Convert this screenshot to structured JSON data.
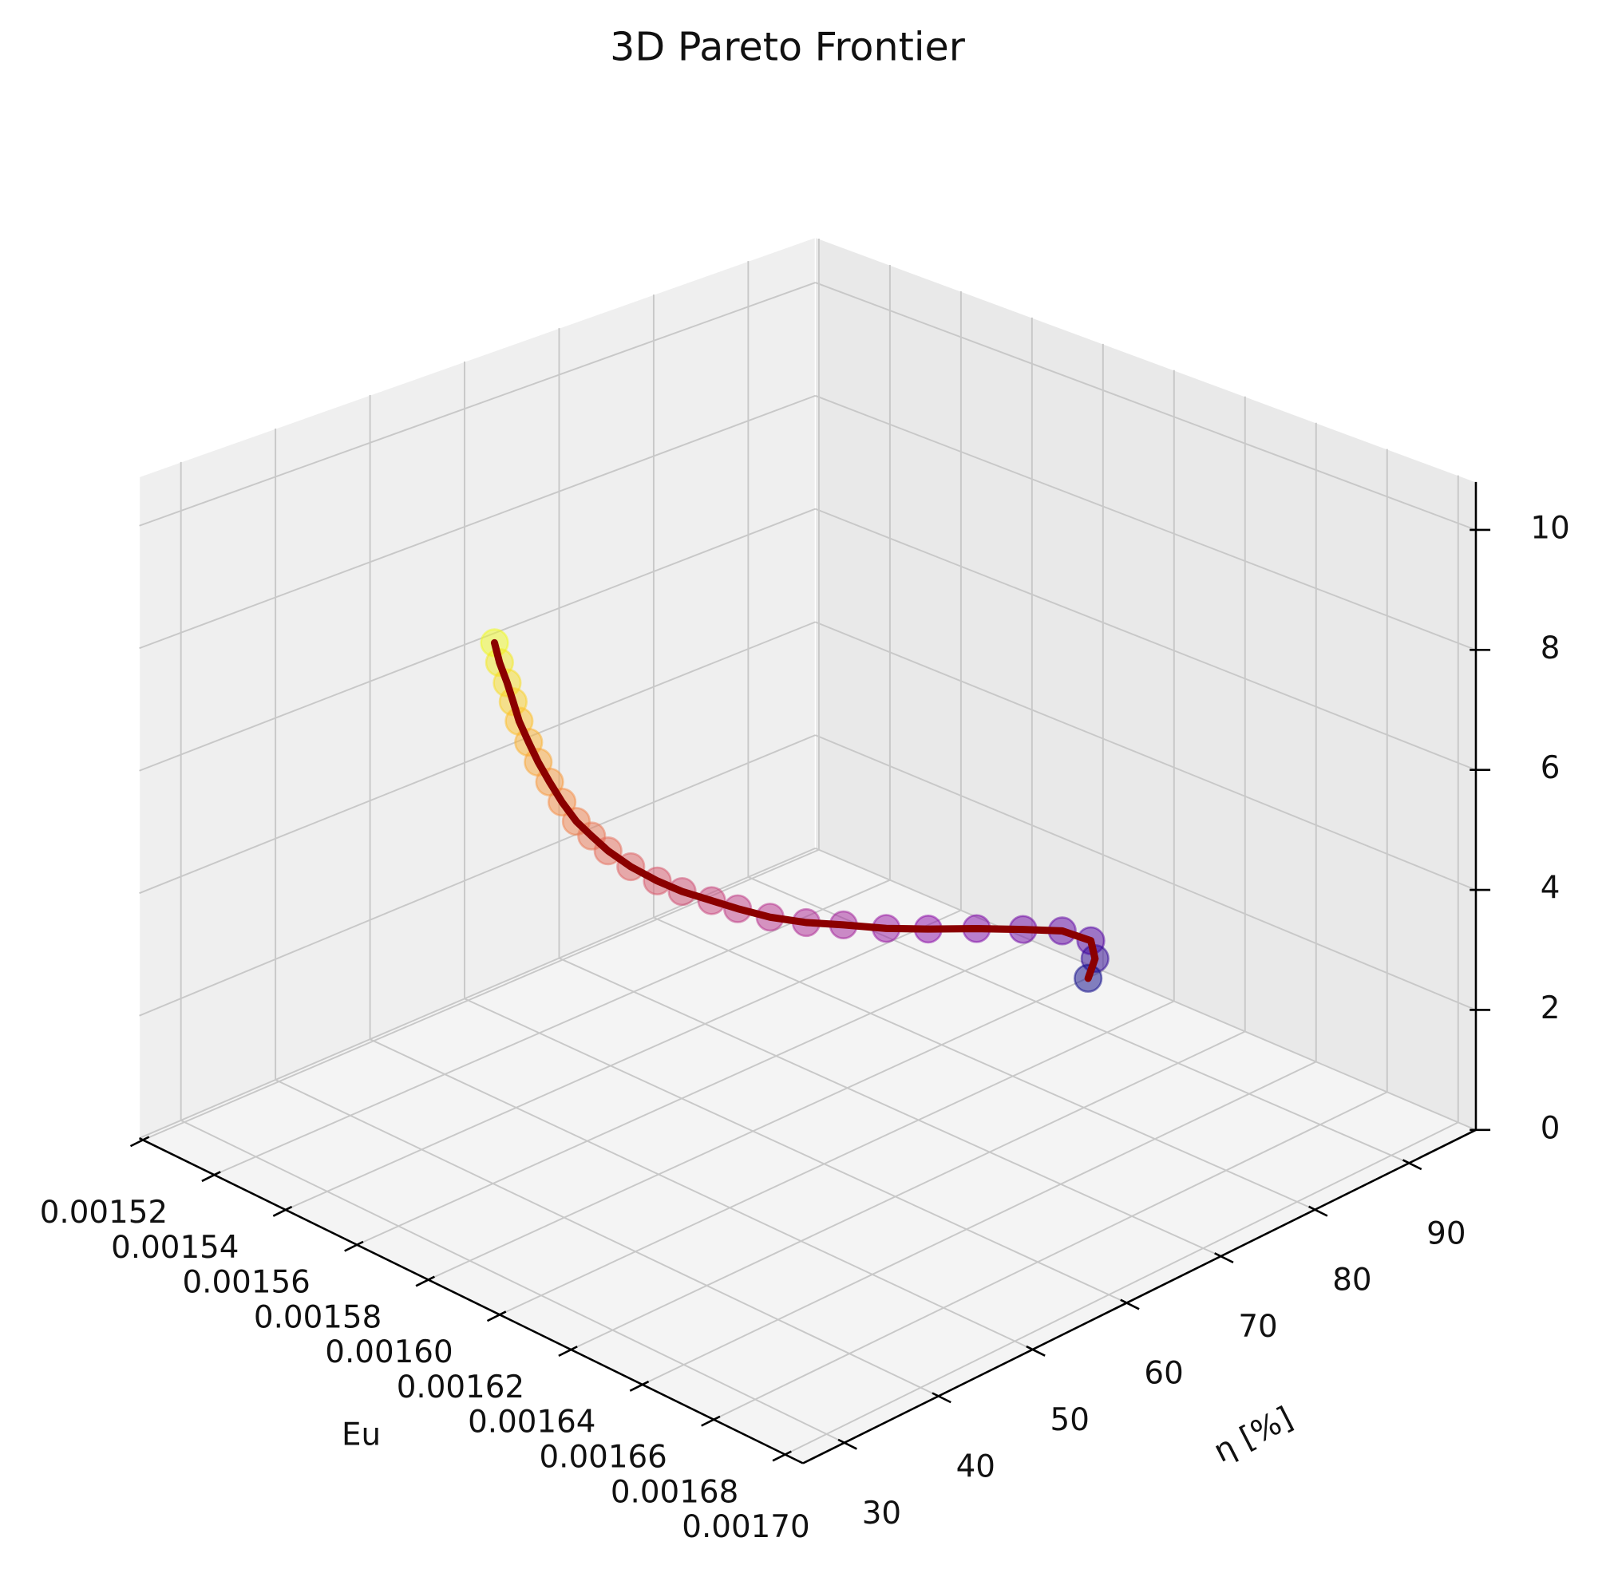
{
  "chart_data": {
    "type": "scatter3d",
    "title": "3D Pareto Frontier",
    "xlabel": "Eu",
    "ylabel": "η [%]",
    "x": [
      0.001577,
      0.00158,
      0.001584,
      0.001587,
      0.00159,
      0.001594,
      0.001598,
      0.001602,
      0.001606,
      0.00161,
      0.001613,
      0.001616,
      0.00162,
      0.001624,
      0.001627,
      0.00163,
      0.001632,
      0.001635,
      0.001638,
      0.00164,
      0.001643,
      0.001645,
      0.001648,
      0.001651,
      0.001653,
      0.001656,
      0.001654,
      0.001651
    ],
    "y": [
      41.3,
      40.7,
      40.0,
      39.5,
      39.0,
      38.5,
      38.0,
      37.7,
      37.5,
      37.5,
      38.0,
      38.6,
      39.5,
      40.8,
      42.3,
      44.3,
      46.3,
      48.6,
      51.3,
      54.5,
      57.9,
      61.6,
      65.6,
      69.4,
      72.8,
      74.7,
      75.9,
      76.3
    ],
    "z": [
      8.64,
      8.43,
      8.24,
      8.04,
      7.83,
      7.62,
      7.43,
      7.23,
      7.02,
      6.81,
      6.62,
      6.42,
      6.21,
      6.0,
      5.81,
      5.61,
      5.4,
      5.19,
      5.0,
      4.8,
      4.59,
      4.38,
      4.19,
      3.99,
      3.78,
      3.56,
      3.13,
      2.7
    ],
    "xlim": [
      0.001519,
      0.001705
    ],
    "ylim": [
      25.6,
      97.1
    ],
    "zlim": [
      0,
      10.8
    ],
    "xticks": [
      0.00152,
      0.00154,
      0.00156,
      0.00158,
      {
        "value": 0.0016,
        "label": "0.00160"
      },
      0.00162,
      0.00164,
      0.00166,
      0.00168,
      {
        "value": 0.0017,
        "label": "0.00170"
      }
    ],
    "yticks": [
      30,
      40,
      50,
      60,
      70,
      80,
      90
    ],
    "zticks": [
      0,
      2,
      4,
      6,
      8,
      10
    ],
    "colormap": "plasma",
    "marker_alpha": 0.5,
    "line_color": "#8b0000",
    "grid": true
  }
}
